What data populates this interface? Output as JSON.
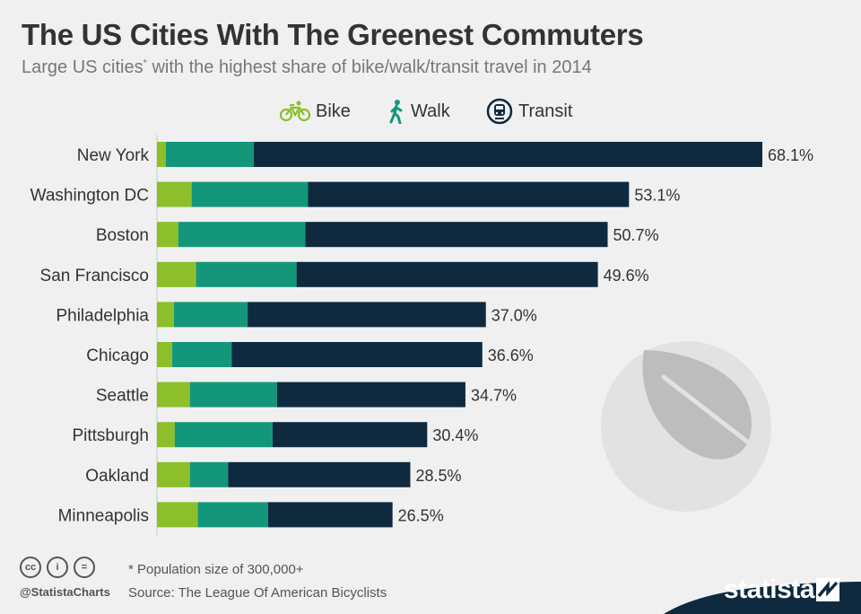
{
  "header": {
    "title": "The US Cities With The Greenest Commuters",
    "subtitle": "Large US cities",
    "subtitle_mark": "*",
    "subtitle_rest": " with the highest share of bike/walk/transit travel in 2014"
  },
  "legend": [
    {
      "label": "Bike",
      "icon": "bicycle-icon",
      "color": "#8cbf2a"
    },
    {
      "label": "Walk",
      "icon": "walking-person-icon",
      "color": "#14967a"
    },
    {
      "label": "Transit",
      "icon": "train-icon",
      "color": "#0f2a3f"
    }
  ],
  "chart_data": {
    "type": "bar",
    "orientation": "horizontal",
    "stacked": true,
    "categories": [
      "New York",
      "Washington DC",
      "Boston",
      "San Francisco",
      "Philadelphia",
      "Chicago",
      "Seattle",
      "Pittsburgh",
      "Oakland",
      "Minneapolis"
    ],
    "series": [
      {
        "name": "Bike",
        "color": "#8cbf2a",
        "values": [
          1.0,
          3.9,
          2.4,
          4.4,
          1.9,
          1.7,
          3.7,
          2.0,
          3.7,
          4.6
        ]
      },
      {
        "name": "Walk",
        "color": "#14967a",
        "values": [
          9.9,
          13.1,
          14.3,
          11.3,
          8.3,
          6.7,
          9.8,
          11.0,
          4.3,
          7.9
        ]
      },
      {
        "name": "Transit",
        "color": "#0f2a3f",
        "values": [
          57.2,
          36.1,
          34.0,
          33.9,
          26.8,
          28.2,
          21.2,
          17.4,
          20.5,
          14.0
        ]
      }
    ],
    "totals": [
      "68.1%",
      "53.1%",
      "50.7%",
      "49.6%",
      "37.0%",
      "36.6%",
      "34.7%",
      "30.4%",
      "28.5%",
      "26.5%"
    ],
    "xlim": [
      0,
      68.1
    ],
    "grid": false
  },
  "footer": {
    "cc_labels": [
      "cc",
      "i",
      "="
    ],
    "handle": "@StatistaCharts",
    "footnote": "* Population size of 300,000+",
    "source": "Source: The League Of American Bicyclists",
    "brand": "statista",
    "brand_color": "#0f2a3f"
  }
}
